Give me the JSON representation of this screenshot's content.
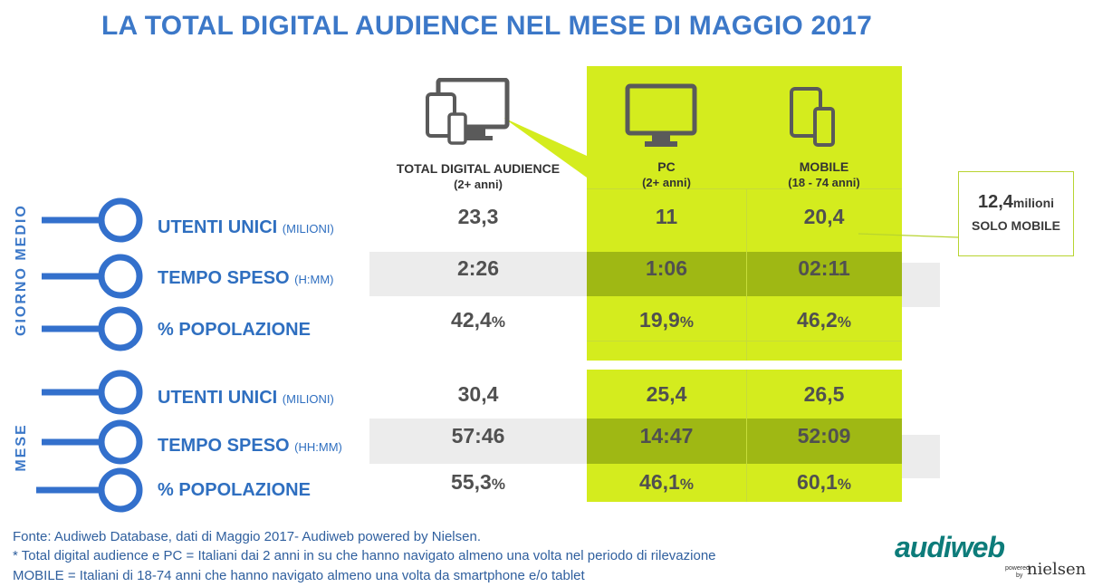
{
  "title": "LA TOTAL DIGITAL AUDIENCE NEL MESE DI MAGGIO 2017",
  "columns": [
    {
      "label": "TOTAL DIGITAL AUDIENCE",
      "sub": "(2+ anni)",
      "icon": "devices-icon"
    },
    {
      "label": "PC",
      "sub": "(2+ anni)",
      "icon": "monitor-icon"
    },
    {
      "label": "MOBILE",
      "sub": "(18 - 74 anni)",
      "icon": "mobile-devices-icon"
    }
  ],
  "sections": [
    {
      "label": "GIORNO MEDIO",
      "rows": [
        {
          "label": "UTENTI UNICI",
          "unit": "(MILIONI)",
          "values": [
            "23,3",
            "11",
            "20,4"
          ],
          "pct": false
        },
        {
          "label": "TEMPO SPESO",
          "unit": "(H:MM)",
          "values": [
            "2:26",
            "1:06",
            "02:11"
          ],
          "pct": false
        },
        {
          "label": "% POPOLAZIONE",
          "unit": "",
          "values": [
            "42,4",
            "19,9",
            "46,2"
          ],
          "pct": true
        }
      ]
    },
    {
      "label": "MESE",
      "rows": [
        {
          "label": "UTENTI UNICI",
          "unit": "(MILIONI)",
          "values": [
            "30,4",
            "25,4",
            "26,5"
          ],
          "pct": false
        },
        {
          "label": "TEMPO SPESO",
          "unit": "(HH:MM)",
          "values": [
            "57:46",
            "14:47",
            "52:09"
          ],
          "pct": false
        },
        {
          "label": "% POPOLAZIONE",
          "unit": "",
          "values": [
            "55,3",
            "46,1",
            "60,1"
          ],
          "pct": true
        }
      ]
    }
  ],
  "pct_symbol": "%",
  "callout": {
    "value": "12,4",
    "unit": "milioni",
    "text": "SOLO MOBILE"
  },
  "footer": {
    "line1": "Fonte: Audiweb Database, dati di Maggio 2017- Audiweb powered by Nielsen.",
    "asterisk": "*",
    "line2": " Total digital audience e PC = Italiani dai 2 anni in su che hanno navigato almeno una volta nel periodo di rilevazione",
    "line3": "MOBILE = Italiani di 18-74 anni che hanno navigato almeno una volta da smartphone e/o tablet"
  },
  "logo": {
    "brand": "audiweb",
    "powered": "powered",
    "by": "by",
    "partner": "nielsen"
  },
  "colors": {
    "title": "#3c78c8",
    "highlight": "#d4ec1e",
    "highlight_dark": "#9fb814",
    "band": "#ececec",
    "label": "#2f6fc0"
  },
  "chart_data": {
    "type": "table",
    "title": "LA TOTAL DIGITAL AUDIENCE NEL MESE DI MAGGIO 2017",
    "columns": [
      "TOTAL DIGITAL AUDIENCE (2+ anni)",
      "PC (2+ anni)",
      "MOBILE (18 - 74 anni)"
    ],
    "rows": [
      {
        "section": "GIORNO MEDIO",
        "metric": "UTENTI UNICI (MILIONI)",
        "values": [
          23.3,
          11,
          20.4
        ]
      },
      {
        "section": "GIORNO MEDIO",
        "metric": "TEMPO SPESO (H:MM)",
        "values": [
          "2:26",
          "1:06",
          "02:11"
        ]
      },
      {
        "section": "GIORNO MEDIO",
        "metric": "% POPOLAZIONE",
        "values": [
          42.4,
          19.9,
          46.2
        ]
      },
      {
        "section": "MESE",
        "metric": "UTENTI UNICI (MILIONI)",
        "values": [
          30.4,
          25.4,
          26.5
        ]
      },
      {
        "section": "MESE",
        "metric": "TEMPO SPESO (HH:MM)",
        "values": [
          "57:46",
          "14:47",
          "52:09"
        ]
      },
      {
        "section": "MESE",
        "metric": "% POPOLAZIONE",
        "values": [
          55.3,
          46.1,
          60.1
        ]
      }
    ]
  }
}
